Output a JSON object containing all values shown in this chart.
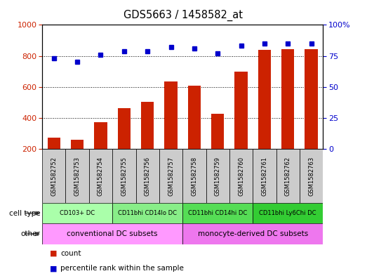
{
  "title": "GDS5663 / 1458582_at",
  "samples": [
    "GSM1582752",
    "GSM1582753",
    "GSM1582754",
    "GSM1582755",
    "GSM1582756",
    "GSM1582757",
    "GSM1582758",
    "GSM1582759",
    "GSM1582760",
    "GSM1582761",
    "GSM1582762",
    "GSM1582763"
  ],
  "counts": [
    275,
    260,
    375,
    465,
    505,
    635,
    610,
    425,
    700,
    840,
    845,
    845
  ],
  "percentiles": [
    73,
    70,
    76,
    79,
    79,
    82,
    81,
    77,
    83,
    85,
    85,
    85
  ],
  "count_color": "#cc2200",
  "percentile_color": "#0000cc",
  "ylim_left": [
    200,
    1000
  ],
  "ylim_right": [
    0,
    100
  ],
  "yticks_left": [
    200,
    400,
    600,
    800,
    1000
  ],
  "yticks_right": [
    0,
    25,
    50,
    75,
    100
  ],
  "cell_type_groups": [
    {
      "label": "CD103+ DC",
      "start": 0,
      "end": 3,
      "color": "#aaffaa"
    },
    {
      "label": "CD11bhi CD14lo DC",
      "start": 3,
      "end": 6,
      "color": "#88ee88"
    },
    {
      "label": "CD11bhi CD14hi DC",
      "start": 6,
      "end": 9,
      "color": "#55dd55"
    },
    {
      "label": "CD11bhi Ly6Chi DC",
      "start": 9,
      "end": 12,
      "color": "#33cc33"
    }
  ],
  "other_groups": [
    {
      "label": "conventional DC subsets",
      "start": 0,
      "end": 6,
      "color": "#ff99ff"
    },
    {
      "label": "monocyte-derived DC subsets",
      "start": 6,
      "end": 12,
      "color": "#ee77ee"
    }
  ],
  "sample_bg_color": "#cccccc",
  "bar_width": 0.55,
  "plot_bg": "#ffffff"
}
